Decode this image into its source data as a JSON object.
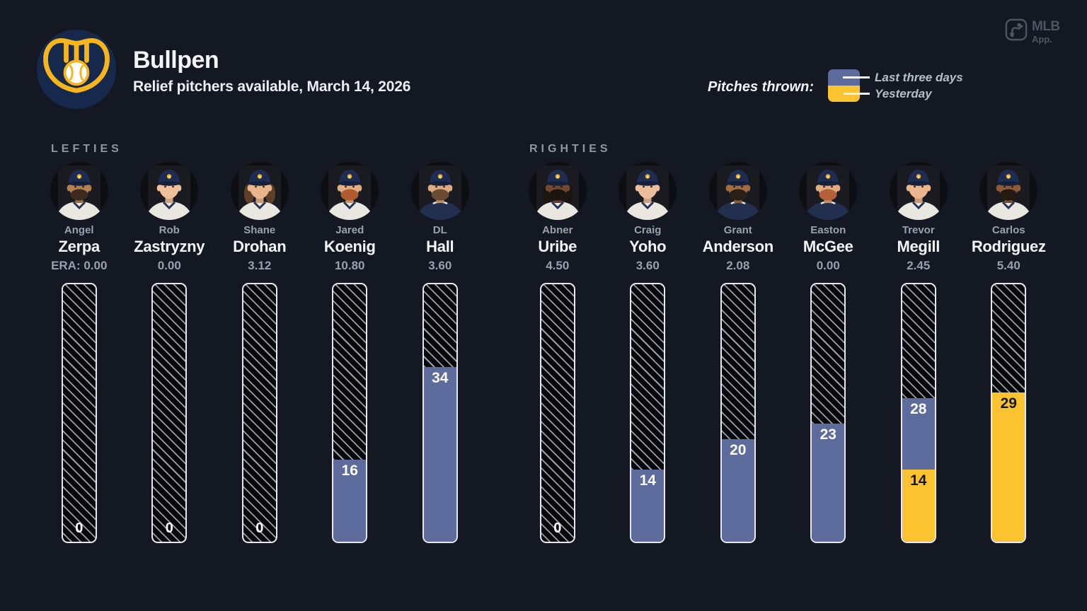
{
  "header": {
    "title": "Bullpen",
    "subtitle": "Relief pitchers available, March 14, 2026",
    "team_logo": "brewers-ball-in-glove"
  },
  "legend": {
    "label": "Pitches thrown:",
    "items": [
      {
        "name": "Last three days",
        "color": "#5d6c9c"
      },
      {
        "name": "Yesterday",
        "color": "#fcc331"
      }
    ]
  },
  "app_badge": {
    "brand": "MLB",
    "sub": "App."
  },
  "colors": {
    "background": "#141823",
    "bar_blue": "#5d6c9c",
    "bar_yellow": "#fcc331",
    "bar_border": "#e6e8ee",
    "hatch_line": "#9aa0aa",
    "hatch_bg": "#07080b",
    "navy_circle": "#16294d",
    "gold": "#f6b51c",
    "badge_gray": "#4e5560"
  },
  "chart_data": {
    "type": "bar",
    "stacked": true,
    "unit": "pitches",
    "ylim": [
      0,
      50
    ],
    "grid": false,
    "legend_position": "top-right",
    "series_legend": [
      "Last three days",
      "Yesterday"
    ],
    "groups": [
      {
        "label": "LEFTIES",
        "players": [
          {
            "first": "Angel",
            "last": "Zerpa",
            "era_display": "ERA: 0.00",
            "last_three_days": 0,
            "yesterday": 0,
            "avatar": {
              "skin": "#b5814f",
              "beard": "#3c2b20",
              "hair": null,
              "jersey": "white"
            }
          },
          {
            "first": "Rob",
            "last": "Zastryzny",
            "era_display": "0.00",
            "last_three_days": 0,
            "yesterday": 0,
            "avatar": {
              "skin": "#eec09a",
              "beard": null,
              "hair": null,
              "jersey": "white"
            }
          },
          {
            "first": "Shane",
            "last": "Drohan",
            "era_display": "3.12",
            "last_three_days": 0,
            "yesterday": 0,
            "avatar": {
              "skin": "#e8b58d",
              "beard": null,
              "hair": "#5e4028",
              "jersey": "white"
            }
          },
          {
            "first": "Jared",
            "last": "Koenig",
            "era_display": "10.80",
            "last_three_days": 16,
            "yesterday": 0,
            "avatar": {
              "skin": "#e3ad83",
              "beard": "#b05c2e",
              "hair": null,
              "jersey": "white"
            }
          },
          {
            "first": "DL",
            "last": "Hall",
            "era_display": "3.60",
            "last_three_days": 34,
            "yesterday": 0,
            "avatar": {
              "skin": "#dcab80",
              "beard": "#6a4c33",
              "hair": null,
              "jersey": "navy"
            }
          }
        ]
      },
      {
        "label": "RIGHTIES",
        "players": [
          {
            "first": "Abner",
            "last": "Uribe",
            "era_display": "4.50",
            "last_three_days": 0,
            "yesterday": 0,
            "avatar": {
              "skin": "#714833",
              "beard": "#1c140e",
              "hair": "#1c140e",
              "jersey": "white"
            }
          },
          {
            "first": "Craig",
            "last": "Yoho",
            "era_display": "3.60",
            "last_three_days": 14,
            "yesterday": 0,
            "avatar": {
              "skin": "#ecbf9c",
              "beard": null,
              "hair": null,
              "jersey": "white"
            }
          },
          {
            "first": "Grant",
            "last": "Anderson",
            "era_display": "2.08",
            "last_three_days": 20,
            "yesterday": 0,
            "avatar": {
              "skin": "#a06c44",
              "beard": "#292018",
              "hair": null,
              "jersey": "navy"
            }
          },
          {
            "first": "Easton",
            "last": "McGee",
            "era_display": "0.00",
            "last_three_days": 23,
            "yesterday": 0,
            "avatar": {
              "skin": "#e0ab81",
              "beard": "#b4603a",
              "hair": null,
              "jersey": "navy"
            }
          },
          {
            "first": "Trevor",
            "last": "Megill",
            "era_display": "2.45",
            "last_three_days": 28,
            "yesterday": 14,
            "avatar": {
              "skin": "#eab68f",
              "beard": null,
              "hair": null,
              "jersey": "white"
            }
          },
          {
            "first": "Carlos",
            "last": "Rodriguez",
            "era_display": "5.40",
            "last_three_days": 29,
            "yesterday": 29,
            "avatar": {
              "skin": "#8d5a3a",
              "beard": "#241a12",
              "hair": null,
              "jersey": "white"
            }
          }
        ]
      }
    ]
  }
}
